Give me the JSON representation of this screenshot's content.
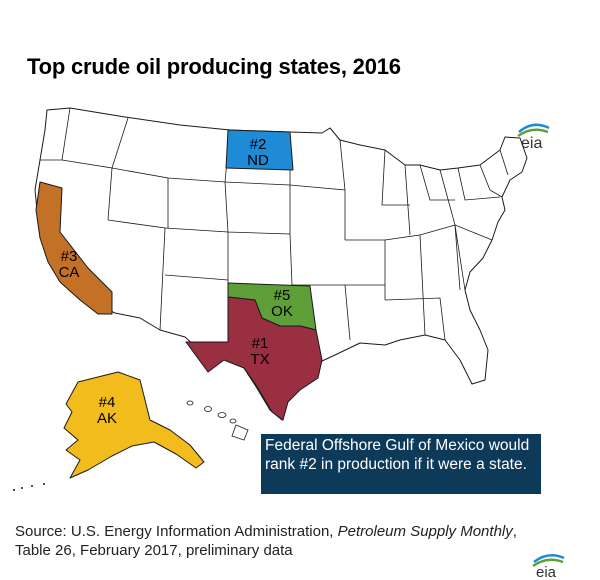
{
  "title": "Top crude oil producing states, 2016",
  "logo_text": "eia",
  "states": {
    "tx": {
      "rank": "#1",
      "abbr": "TX",
      "color": "#9b2f42"
    },
    "nd": {
      "rank": "#2",
      "abbr": "ND",
      "color": "#1f8bd6"
    },
    "ca": {
      "rank": "#3",
      "abbr": "CA",
      "color": "#c27127"
    },
    "ak": {
      "rank": "#4",
      "abbr": "AK",
      "color": "#f2bc1c"
    },
    "ok": {
      "rank": "#5",
      "abbr": "OK",
      "color": "#5e9f3a"
    }
  },
  "callout": "Federal Offshore Gulf of Mexico would rank #2 in production if it were a state.",
  "source": {
    "prefix": "Source: U.S. Energy Information Administration, ",
    "publication": "Petroleum Supply Monthly",
    "suffix": ",",
    "line2": "Table 26, February 2017, preliminary data"
  },
  "colors": {
    "callout_bg": "#0e3a5a",
    "other_states": "#ffffff"
  }
}
